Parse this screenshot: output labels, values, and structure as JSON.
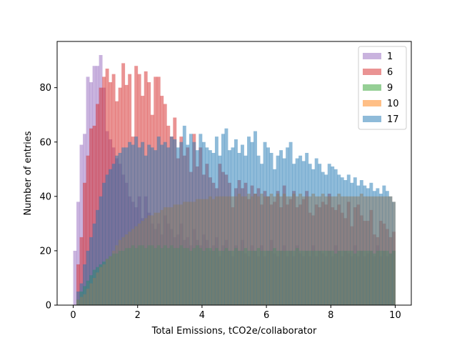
{
  "chart_data": {
    "type": "bar",
    "subtype": "overlaid-histogram",
    "title": "",
    "xlabel": "Total Emissions, tCO2e/collaborator",
    "ylabel": "Number of entries",
    "xlim": [
      -0.5,
      10.5
    ],
    "ylim": [
      0,
      97
    ],
    "bin_width": 0.1,
    "bin_range": [
      0,
      10
    ],
    "x_ticks": [
      0,
      2,
      4,
      6,
      8,
      10
    ],
    "y_ticks": [
      0,
      20,
      40,
      60,
      80
    ],
    "grid": false,
    "legend_position": "top-right",
    "series": [
      {
        "name": "1",
        "color": "#9467bd",
        "opacity": 0.5,
        "values": [
          20,
          38,
          59,
          63,
          84,
          82,
          88,
          88,
          92,
          80,
          64,
          61,
          58,
          54,
          52,
          48,
          45,
          40,
          38,
          36,
          40,
          32,
          40,
          34,
          30,
          28,
          30,
          26,
          33,
          30,
          28,
          25,
          26,
          30,
          24,
          25,
          22,
          28,
          24,
          22,
          26,
          24,
          20,
          22,
          25,
          18,
          22,
          24,
          20,
          18,
          22,
          20,
          24,
          19,
          18,
          22,
          20,
          18,
          22,
          18,
          20,
          24,
          19,
          18,
          20,
          22,
          18,
          20,
          18,
          22,
          19,
          18,
          20,
          18,
          22,
          18,
          20,
          19,
          18,
          20,
          18,
          22,
          20,
          18,
          20,
          19,
          18,
          22,
          18,
          20,
          18,
          19,
          20,
          18,
          22,
          18,
          20,
          18,
          19,
          20
        ]
      },
      {
        "name": "6",
        "color": "#d62728",
        "opacity": 0.5,
        "values": [
          0,
          15,
          25,
          45,
          55,
          65,
          66,
          74,
          80,
          84,
          87,
          82,
          85,
          75,
          80,
          89,
          81,
          85,
          62,
          88,
          85,
          77,
          86,
          82,
          70,
          84,
          84,
          77,
          74,
          66,
          62,
          69,
          54,
          62,
          55,
          58,
          49,
          63,
          51,
          58,
          48,
          52,
          47,
          45,
          43,
          52,
          49,
          48,
          45,
          36,
          43,
          46,
          43,
          45,
          39,
          44,
          41,
          43,
          37,
          42,
          40,
          37,
          38,
          42,
          36,
          44,
          37,
          39,
          42,
          36,
          37,
          39,
          42,
          34,
          33,
          37,
          36,
          38,
          37,
          41,
          36,
          35,
          37,
          34,
          32,
          38,
          29,
          36,
          37,
          33,
          31,
          31,
          35,
          26,
          25,
          31,
          30,
          28,
          25,
          27
        ]
      },
      {
        "name": "9",
        "color": "#2ca02c",
        "opacity": 0.5,
        "values": [
          0,
          2,
          5,
          7,
          9,
          11,
          13,
          14,
          15,
          16,
          17,
          18,
          19,
          19,
          20,
          20,
          21,
          21,
          22,
          21,
          22,
          22,
          21,
          22,
          22,
          21,
          22,
          21,
          22,
          21,
          22,
          21,
          21,
          22,
          21,
          21,
          20,
          21,
          22,
          21,
          20,
          21,
          21,
          20,
          21,
          20,
          20,
          21,
          20,
          20,
          21,
          20,
          20,
          21,
          20,
          20,
          20,
          21,
          20,
          20,
          20,
          20,
          21,
          20,
          20,
          20,
          20,
          20,
          20,
          21,
          20,
          20,
          20,
          20,
          20,
          20,
          20,
          20,
          20,
          20,
          20,
          19,
          20,
          20,
          20,
          20,
          20,
          19,
          20,
          20,
          20,
          20,
          20,
          19,
          20,
          20,
          20,
          20,
          19,
          20
        ]
      },
      {
        "name": "10",
        "color": "#ff7f0e",
        "opacity": 0.5,
        "values": [
          0,
          2,
          3,
          4,
          6,
          8,
          10,
          12,
          14,
          15,
          17,
          18,
          20,
          22,
          24,
          25,
          26,
          27,
          28,
          29,
          30,
          31,
          32,
          33,
          33,
          34,
          34,
          35,
          36,
          36,
          36,
          37,
          37,
          37,
          38,
          38,
          38,
          38,
          39,
          39,
          39,
          39,
          40,
          39,
          40,
          40,
          40,
          40,
          40,
          40,
          40,
          41,
          40,
          40,
          41,
          40,
          41,
          40,
          41,
          40,
          40,
          41,
          40,
          41,
          40,
          41,
          40,
          40,
          41,
          40,
          41,
          40,
          40,
          40,
          41,
          40,
          40,
          41,
          40,
          40,
          40,
          40,
          41,
          40,
          40,
          40,
          40,
          40,
          40,
          41,
          40,
          40,
          40,
          40,
          40,
          40,
          40,
          40,
          40,
          38
        ]
      },
      {
        "name": "17",
        "color": "#1f77b4",
        "opacity": 0.5,
        "values": [
          0,
          5,
          8,
          15,
          20,
          25,
          30,
          35,
          40,
          45,
          48,
          50,
          52,
          55,
          56,
          58,
          58,
          60,
          59,
          62,
          58,
          60,
          55,
          59,
          58,
          57,
          62,
          59,
          60,
          58,
          62,
          61,
          58,
          60,
          66,
          59,
          63,
          60,
          57,
          63,
          60,
          58,
          57,
          56,
          62,
          55,
          63,
          65,
          57,
          58,
          61,
          56,
          59,
          55,
          62,
          60,
          64,
          55,
          52,
          60,
          58,
          56,
          50,
          55,
          57,
          54,
          58,
          60,
          52,
          54,
          55,
          53,
          56,
          52,
          50,
          54,
          52,
          49,
          48,
          52,
          51,
          50,
          48,
          47,
          46,
          48,
          45,
          47,
          44,
          46,
          44,
          43,
          45,
          42,
          43,
          41,
          44,
          42,
          40,
          38
        ]
      }
    ]
  }
}
